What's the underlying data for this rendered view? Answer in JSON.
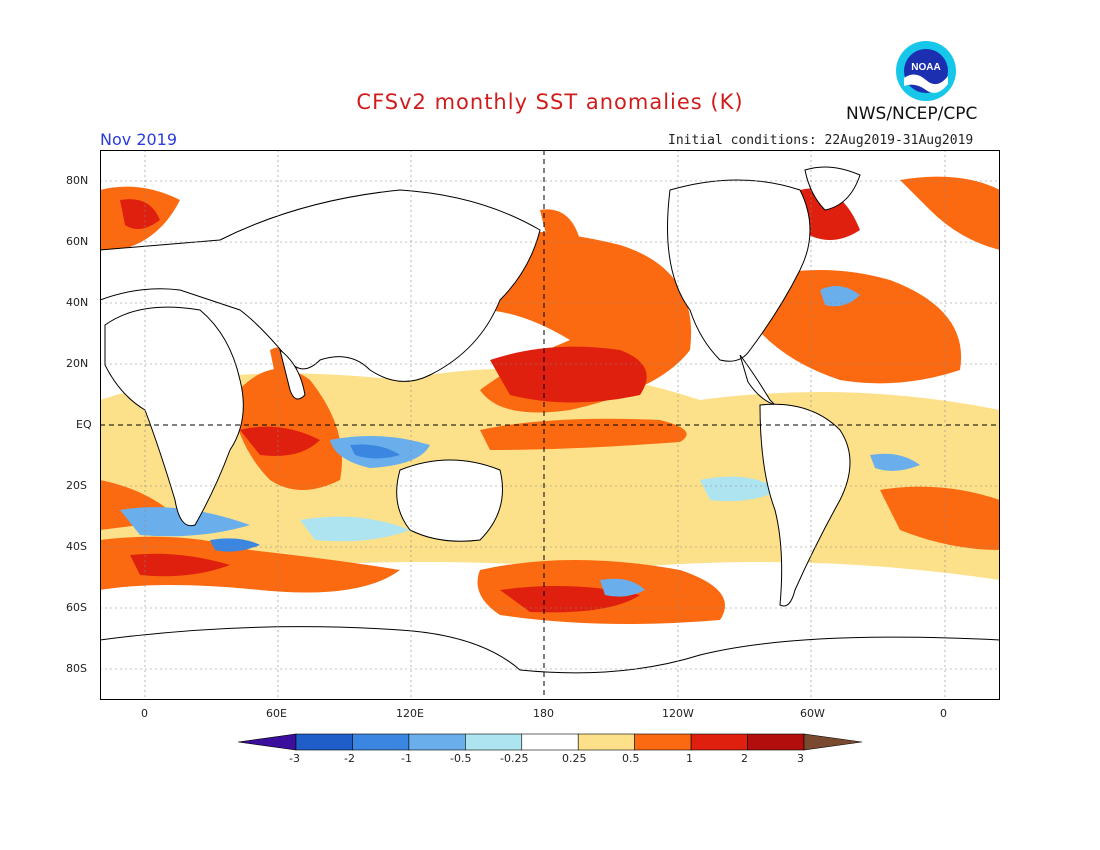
{
  "title": "CFSv2 monthly SST anomalies (K)",
  "organization": "NWS/NCEP/CPC",
  "logo_text": "NOAA",
  "valid_month": "Nov 2019",
  "initial_conditions": "Initial conditions: 22Aug2019-31Aug2019",
  "map": {
    "lat_labels": [
      "80N",
      "60N",
      "40N",
      "20N",
      "EQ",
      "20S",
      "40S",
      "60S",
      "80S"
    ],
    "lat_values": [
      80,
      60,
      40,
      20,
      0,
      -20,
      -40,
      -60,
      -80
    ],
    "lon_labels": [
      "0",
      "60E",
      "120E",
      "180",
      "120W",
      "60W",
      "0"
    ],
    "lon_values": [
      0,
      60,
      120,
      180,
      240,
      300,
      360
    ],
    "lon_range": [
      -20,
      385
    ],
    "lat_range": [
      -90,
      90
    ],
    "reference_lines": [
      "EQ",
      "180"
    ]
  },
  "colorbar": {
    "tick_labels": [
      "-3",
      "-2",
      "-1",
      "-0.5",
      "-0.25",
      "0.25",
      "0.5",
      "1",
      "2",
      "3"
    ],
    "colors": [
      "#3b0e9e",
      "#1f5ec8",
      "#3a86e0",
      "#6aaeec",
      "#aee4f0",
      "#ffffff",
      "#fde08a",
      "#fb6a10",
      "#e0200e",
      "#b20e0e",
      "#7a4a30"
    ]
  }
}
